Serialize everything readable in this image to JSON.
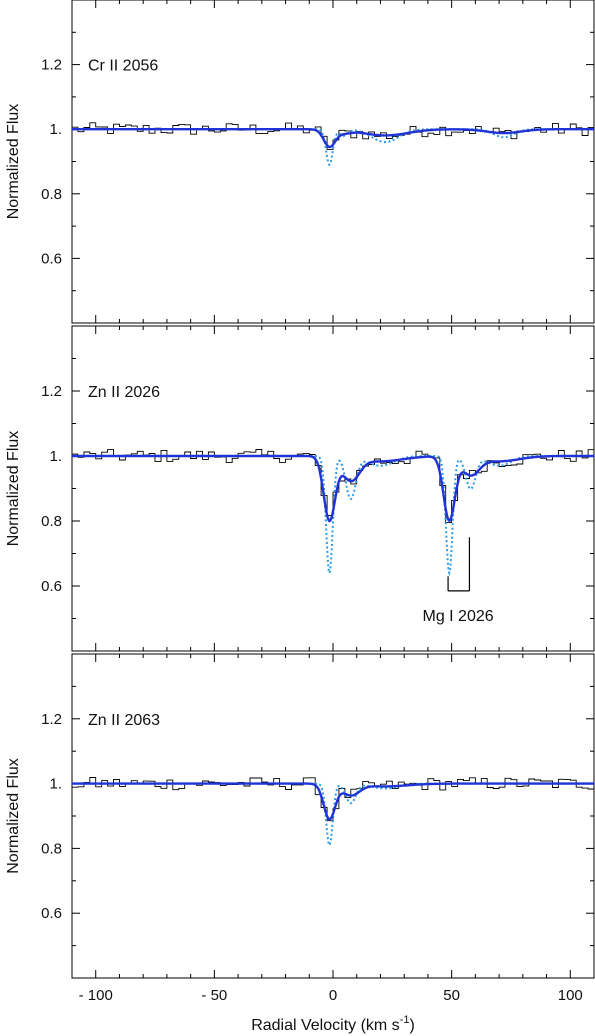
{
  "chart_data": {
    "type": "line",
    "xlabel": "Radial Velocity (km s",
    "xlabel_sup": "-1",
    "xlabel_close": ")",
    "xlim": [
      -110,
      110
    ],
    "x_ticks": [
      -100,
      -50,
      0,
      50,
      100
    ],
    "x_tick_labels": [
      "- 100",
      "- 50",
      "0",
      "50",
      "100"
    ],
    "ylabel": "Normalized Flux",
    "ylim": [
      0.4,
      1.4
    ],
    "y_ticks": [
      0.6,
      0.8,
      1.0,
      1.2
    ],
    "y_tick_labels": [
      "0.6",
      "0.8",
      "1.",
      "1.2"
    ],
    "colors": {
      "data": "#000000",
      "fit": "#1f33d6",
      "components": "#2e9be6"
    },
    "panels": [
      {
        "label": "Cr II 2056",
        "lines": [
          {
            "v": -1.5,
            "b": 2.0,
            "depth_comp": 0.11
          },
          {
            "v": 4.5,
            "b": 2.5,
            "depth_comp": 0.02
          },
          {
            "v": 22.0,
            "b": 8.0,
            "depth_comp": 0.04
          },
          {
            "v": 72.0,
            "b": 6.0,
            "depth_comp": 0.025
          }
        ],
        "fit_min": 0.945,
        "fit_min_v": -1.0
      },
      {
        "label": "Zn II 2026",
        "lines": [
          {
            "v": -1.5,
            "b": 2.0,
            "depth_comp": 0.36
          },
          {
            "v": 7.5,
            "b": 3.0,
            "depth_comp": 0.13
          },
          {
            "v": 20.0,
            "b": 8.0,
            "depth_comp": 0.03
          },
          {
            "v": 49.0,
            "b": 2.0,
            "depth_comp": 0.36
          },
          {
            "v": 58.0,
            "b": 3.0,
            "depth_comp": 0.1
          },
          {
            "v": 70.0,
            "b": 7.0,
            "depth_comp": 0.03
          }
        ],
        "fit_min": 0.8,
        "fit_min_v": -1.0,
        "annotation": {
          "text": "Mg I 2026",
          "tick_a_x": 48.5,
          "tick_a_ymin": 0.585,
          "tick_a_ymax": 0.63,
          "tick_b_x": 57.5,
          "tick_b_ymin": 0.585,
          "tick_b_ymax": 0.75
        }
      },
      {
        "label": "Zn II 2063",
        "lines": [
          {
            "v": -1.5,
            "b": 2.0,
            "depth_comp": 0.19
          },
          {
            "v": 7.5,
            "b": 3.0,
            "depth_comp": 0.06
          },
          {
            "v": 22.0,
            "b": 8.0,
            "depth_comp": 0.015
          }
        ],
        "fit_min": 0.89,
        "fit_min_v": -1.0
      }
    ]
  }
}
